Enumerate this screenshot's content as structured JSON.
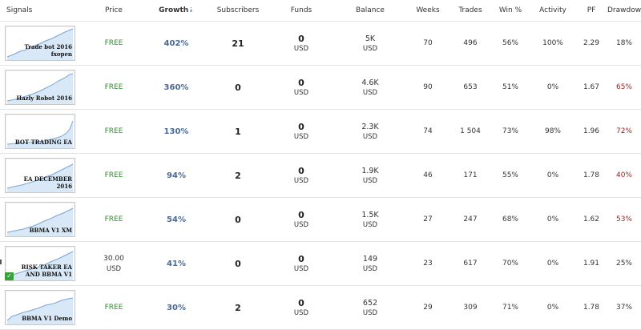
{
  "headers": {
    "signals": "Signals",
    "price": "Price",
    "growth": "Growth",
    "growth_sort_indicator": "⇣",
    "subscribers": "Subscribers",
    "funds": "Funds",
    "balance": "Balance",
    "weeks": "Weeks",
    "trades": "Trades",
    "win": "Win %",
    "activity": "Activity",
    "pf": "PF",
    "drawdown": "Drawdown"
  },
  "colors": {
    "free": "#2e8b2e",
    "growth": "#4a6a96",
    "drawdown_high": "#9b1c1c",
    "verified_badge": "#3aa13a"
  },
  "rows": [
    {
      "name": "Trade bot 2016 fxopen",
      "price": "FREE",
      "price_unit": "",
      "growth": "402%",
      "subscribers": "21",
      "funds": "0",
      "funds_unit": "USD",
      "balance": "5K",
      "balance_unit": "USD",
      "weeks": "70",
      "trades": "496",
      "win": "56%",
      "activity": "100%",
      "pf": "2.29",
      "drawdown": "18%",
      "drawdown_high": false,
      "verified": false
    },
    {
      "name": "Hazly Robot 2016",
      "price": "FREE",
      "price_unit": "",
      "growth": "360%",
      "subscribers": "0",
      "funds": "0",
      "funds_unit": "USD",
      "balance": "4.6K",
      "balance_unit": "USD",
      "weeks": "90",
      "trades": "653",
      "win": "51%",
      "activity": "0%",
      "pf": "1.67",
      "drawdown": "65%",
      "drawdown_high": true,
      "verified": false
    },
    {
      "name": "BOT TRADING EA",
      "price": "FREE",
      "price_unit": "",
      "growth": "130%",
      "subscribers": "1",
      "funds": "0",
      "funds_unit": "USD",
      "balance": "2.3K",
      "balance_unit": "USD",
      "weeks": "74",
      "trades": "1 504",
      "win": "73%",
      "activity": "98%",
      "pf": "1.96",
      "drawdown": "72%",
      "drawdown_high": true,
      "verified": false
    },
    {
      "name": "EA DECEMBER 2016",
      "price": "FREE",
      "price_unit": "",
      "growth": "94%",
      "subscribers": "2",
      "funds": "0",
      "funds_unit": "USD",
      "balance": "1.9K",
      "balance_unit": "USD",
      "weeks": "46",
      "trades": "171",
      "win": "55%",
      "activity": "0%",
      "pf": "1.78",
      "drawdown": "40%",
      "drawdown_high": true,
      "verified": false
    },
    {
      "name": "BBMA V1 XM",
      "price": "FREE",
      "price_unit": "",
      "growth": "54%",
      "subscribers": "0",
      "funds": "0",
      "funds_unit": "USD",
      "balance": "1.5K",
      "balance_unit": "USD",
      "weeks": "27",
      "trades": "247",
      "win": "68%",
      "activity": "0%",
      "pf": "1.62",
      "drawdown": "53%",
      "drawdown_high": true,
      "verified": false
    },
    {
      "name": "RISK TAKER EA AND BBMA V1",
      "price": "30.00",
      "price_unit": "USD",
      "growth": "41%",
      "subscribers": "0",
      "funds": "0",
      "funds_unit": "USD",
      "balance": "149",
      "balance_unit": "USD",
      "weeks": "23",
      "trades": "617",
      "win": "70%",
      "activity": "0%",
      "pf": "1.91",
      "drawdown": "25%",
      "drawdown_high": false,
      "verified": true,
      "verified_icon": "✓"
    },
    {
      "name": "BBMA V1 Demo",
      "price": "FREE",
      "price_unit": "",
      "growth": "30%",
      "subscribers": "2",
      "funds": "0",
      "funds_unit": "USD",
      "balance": "652",
      "balance_unit": "USD",
      "weeks": "29",
      "trades": "309",
      "win": "71%",
      "activity": "0%",
      "pf": "1.78",
      "drawdown": "37%",
      "drawdown_high": false,
      "verified": false
    }
  ]
}
